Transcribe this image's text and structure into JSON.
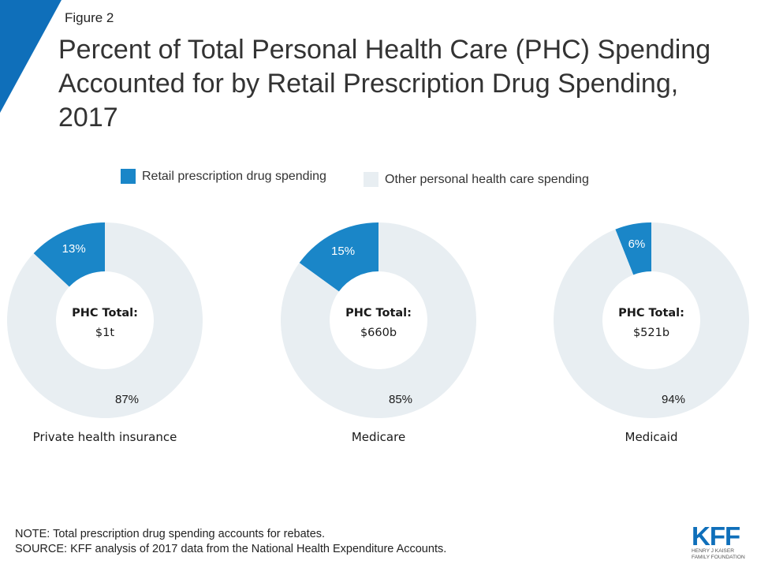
{
  "figure_label": "Figure 2",
  "title": "Percent of Total Personal Health Care (PHC) Spending Accounted for by Retail Prescription Drug Spending, 2017",
  "colors": {
    "accent": "#0f7dc2",
    "retail": "#1a86c8",
    "other": "#e8eef2",
    "title": "#333333",
    "corner": "#0f6fba"
  },
  "legend": {
    "retail_label": "Retail prescription drug spending",
    "other_label": "Other personal health care spending"
  },
  "chart_data": [
    {
      "type": "pie",
      "name": "Private health insurance",
      "center_label": "PHC Total:",
      "center_value": "$1t",
      "slices": [
        {
          "label": "Retail prescription drug spending",
          "value": 13,
          "display": "13%"
        },
        {
          "label": "Other personal health care spending",
          "value": 87,
          "display": "87%"
        }
      ]
    },
    {
      "type": "pie",
      "name": "Medicare",
      "center_label": "PHC Total:",
      "center_value": "$660b",
      "slices": [
        {
          "label": "Retail prescription drug spending",
          "value": 15,
          "display": "15%"
        },
        {
          "label": "Other personal health care spending",
          "value": 85,
          "display": "85%"
        }
      ]
    },
    {
      "type": "pie",
      "name": "Medicaid",
      "center_label": "PHC Total:",
      "center_value": "$521b",
      "slices": [
        {
          "label": "Retail prescription drug spending",
          "value": 6,
          "display": "6%"
        },
        {
          "label": "Other personal health care spending",
          "value": 94,
          "display": "94%"
        }
      ]
    }
  ],
  "footer": {
    "note": "NOTE: Total prescription drug spending accounts for rebates.",
    "source": "SOURCE: KFF analysis of 2017 data from the National Health Expenditure Accounts."
  },
  "logo": {
    "text": "KFF",
    "line1": "HENRY J KAISER",
    "line2": "FAMILY FOUNDATION"
  }
}
